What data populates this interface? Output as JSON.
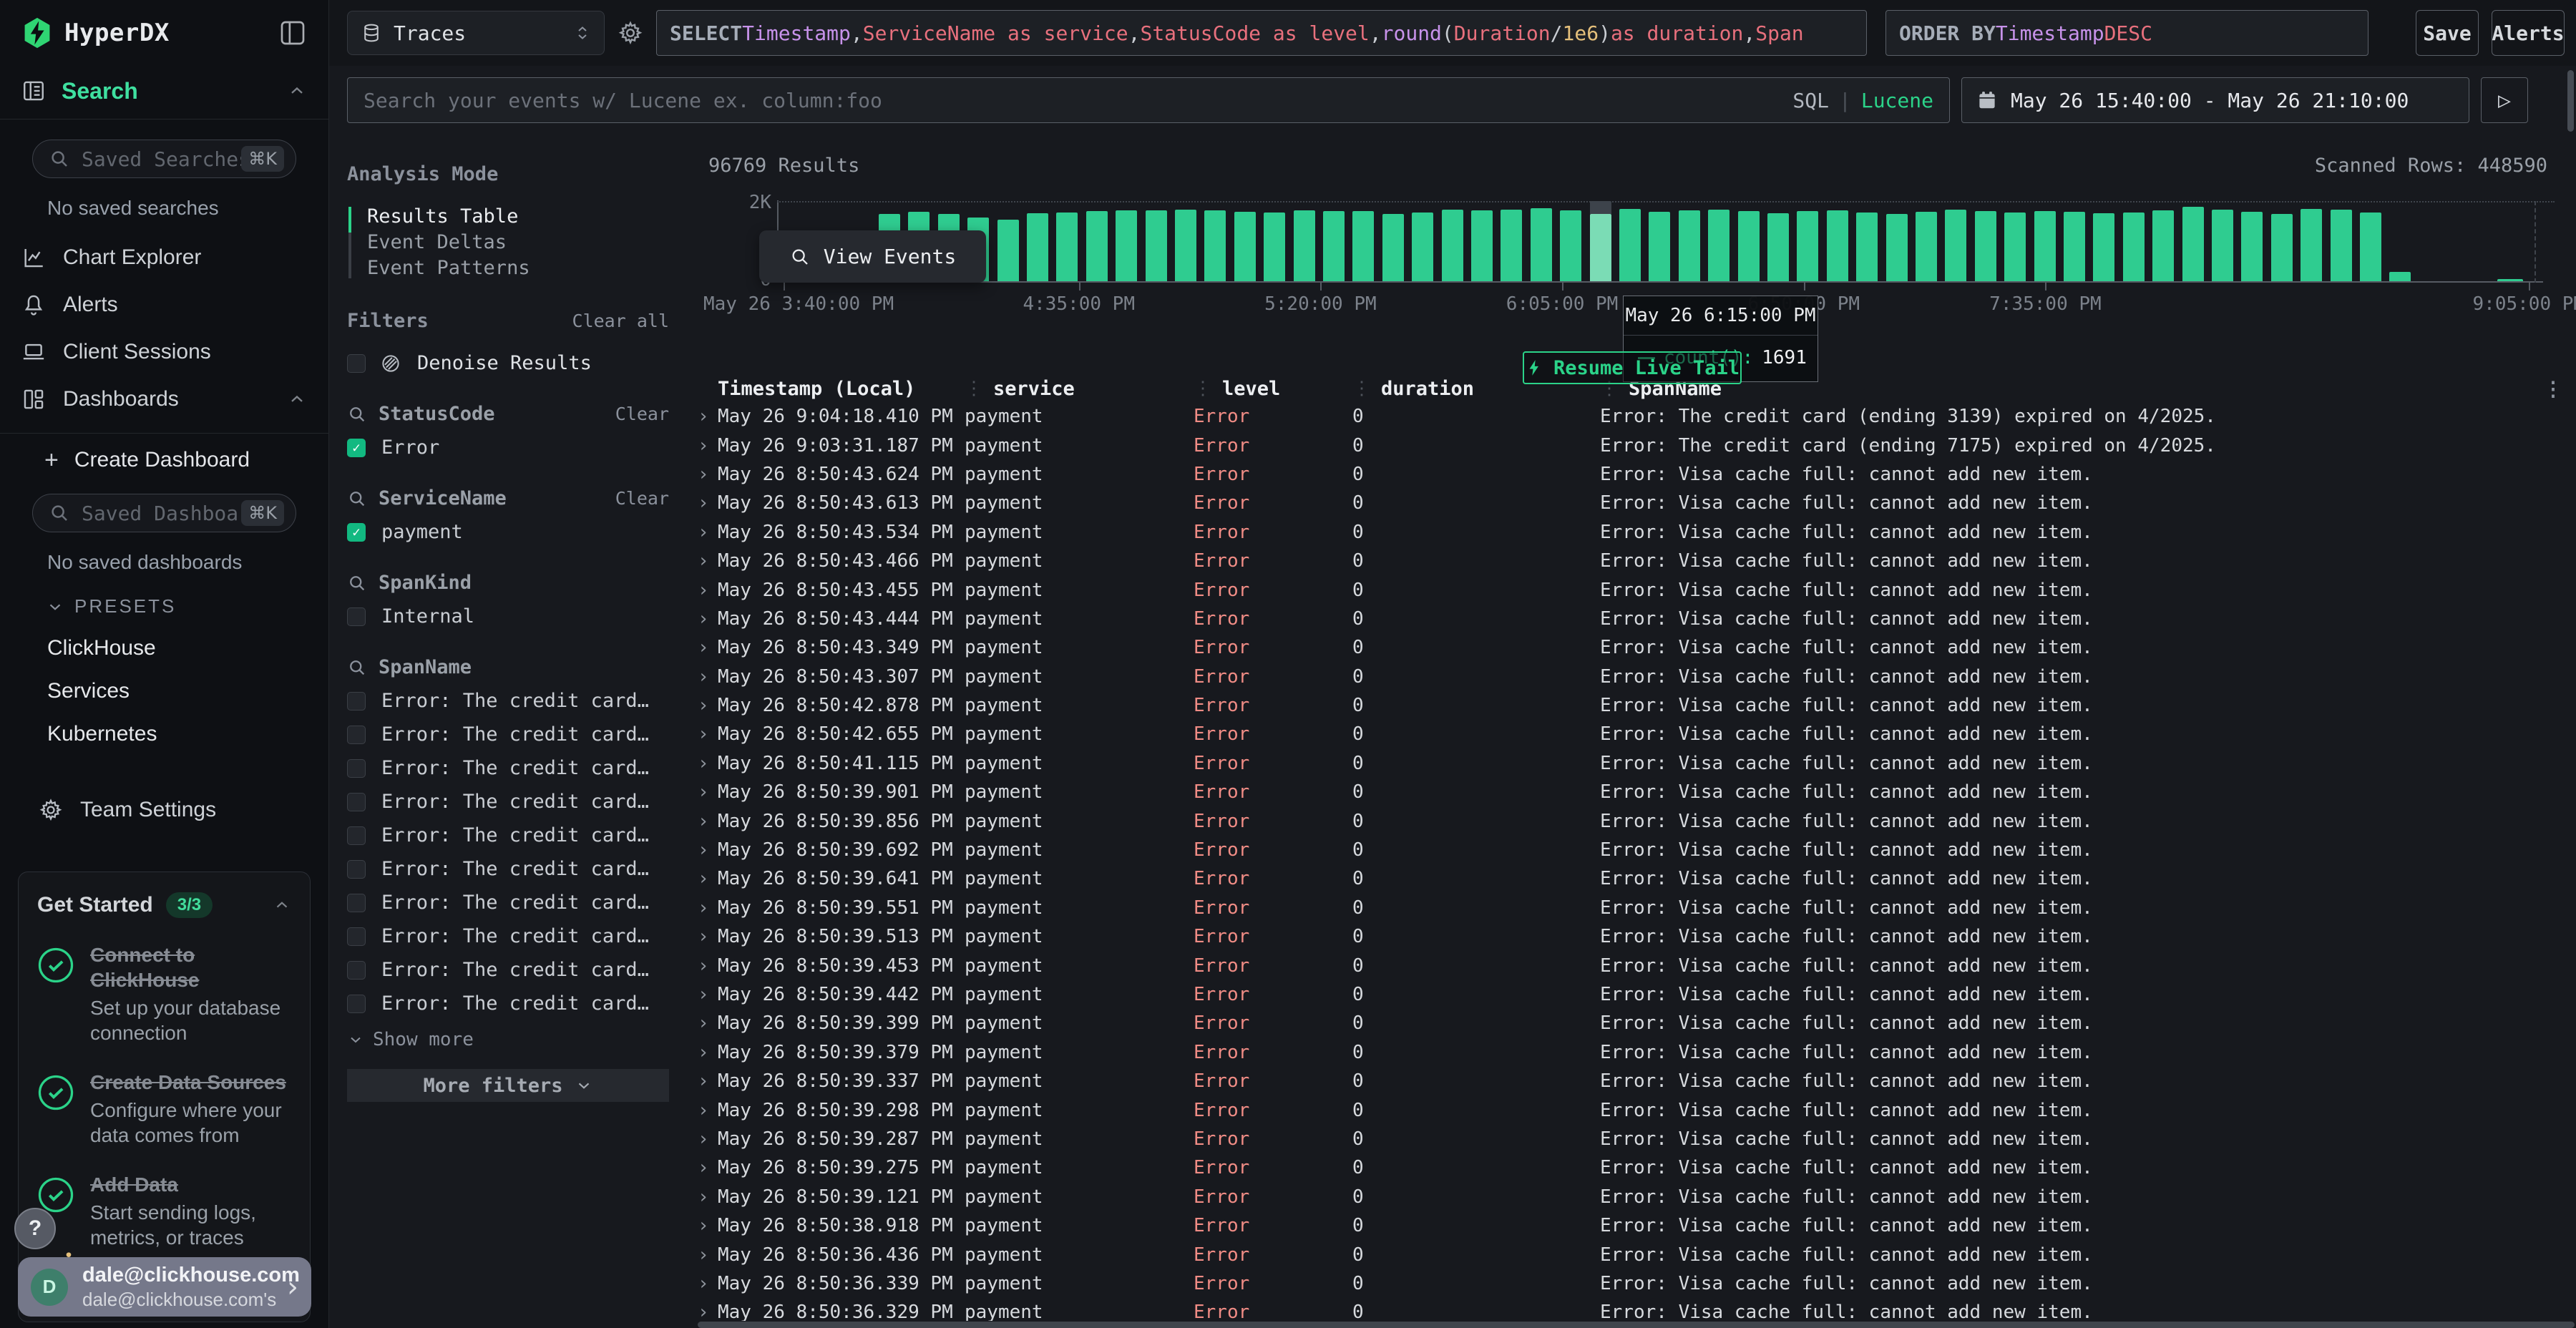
{
  "brand": {
    "name": "HyperDX"
  },
  "topbar": {
    "source_select": {
      "value": "Traces"
    },
    "sql_editor": {
      "segments": [
        [
          "SELECT ",
          "kw"
        ],
        [
          "Timestamp",
          "purple"
        ],
        [
          ", ",
          "pl"
        ],
        [
          "ServiceName as service",
          "salmon"
        ],
        [
          ", ",
          "pl"
        ],
        [
          "StatusCode as level",
          "salmon"
        ],
        [
          ", ",
          "pl"
        ],
        [
          "round",
          "purple"
        ],
        [
          "(",
          "pl"
        ],
        [
          "Duration",
          "salmon"
        ],
        [
          " / ",
          "pl"
        ],
        [
          "1e6",
          "yellow"
        ],
        [
          ")",
          "pl"
        ],
        [
          " as duration",
          "salmon"
        ],
        [
          ", ",
          "pl"
        ],
        [
          "Span",
          "salmon"
        ]
      ]
    },
    "order_by": {
      "segments": [
        [
          "ORDER BY ",
          "kw"
        ],
        [
          "Timestamp",
          "purple"
        ],
        [
          " DESC",
          "salmon"
        ]
      ]
    },
    "save": "Save",
    "alerts": "Alerts"
  },
  "search_row": {
    "placeholder": "Search your events w/ Lucene ex. column:foo",
    "mode_sql": "SQL",
    "mode_divider": "|",
    "mode_lucene": "Lucene",
    "date_range": "May 26 15:40:00 - May 26 21:10:00",
    "run_icon": "▷"
  },
  "sidebar": {
    "search_label": "Search",
    "saved_searches": {
      "placeholder": "Saved Searches",
      "shortcut": "⌘K",
      "empty": "No saved searches"
    },
    "nav": [
      {
        "label": "Chart Explorer"
      },
      {
        "label": "Alerts"
      },
      {
        "label": "Client Sessions"
      },
      {
        "label": "Dashboards"
      }
    ],
    "create_dashboard": "+ Create Dashboard",
    "saved_dashboards": {
      "placeholder": "Saved Dashboards",
      "shortcut": "⌘K",
      "empty": "No saved dashboards"
    },
    "presets": {
      "label": "PRESETS",
      "items": [
        "ClickHouse",
        "Services",
        "Kubernetes"
      ]
    },
    "team_settings": "Team Settings",
    "get_started": {
      "title": "Get Started",
      "badge": "3/3",
      "items": [
        {
          "title": "Connect to ClickHouse",
          "desc": "Set up your database connection"
        },
        {
          "title": "Create Data Sources",
          "desc": "Configure where your data comes from"
        },
        {
          "title": "Add Data",
          "desc": "Start sending logs, metrics, or traces"
        }
      ]
    },
    "help": "?",
    "user": {
      "initial": "D",
      "name": "dale@clickhouse.com",
      "subtitle": "dale@clickhouse.com's"
    }
  },
  "panel": {
    "analysis_mode": "Analysis Mode",
    "modes": [
      "Results Table",
      "Event Deltas",
      "Event Patterns"
    ],
    "active_mode": 0,
    "filters": {
      "title": "Filters",
      "clear_all": "Clear all",
      "denoise": "Denoise Results",
      "groups": [
        {
          "name": "StatusCode",
          "clear": "Clear",
          "options": [
            {
              "label": "Error",
              "checked": true
            }
          ]
        },
        {
          "name": "ServiceName",
          "clear": "Clear",
          "options": [
            {
              "label": "payment",
              "checked": true
            }
          ]
        },
        {
          "name": "SpanKind",
          "options": [
            {
              "label": "Internal",
              "checked": false
            }
          ]
        },
        {
          "name": "SpanName",
          "show_more": "Show more",
          "options": [
            {
              "label": "Error: The credit card …",
              "checked": false
            },
            {
              "label": "Error: The credit card …",
              "checked": false
            },
            {
              "label": "Error: The credit card …",
              "checked": false
            },
            {
              "label": "Error: The credit card …",
              "checked": false
            },
            {
              "label": "Error: The credit card …",
              "checked": false
            },
            {
              "label": "Error: The credit card …",
              "checked": false
            },
            {
              "label": "Error: The credit card …",
              "checked": false
            },
            {
              "label": "Error: The credit card …",
              "checked": false
            },
            {
              "label": "Error: The credit card …",
              "checked": false
            },
            {
              "label": "Error: The credit card …",
              "checked": false
            }
          ]
        }
      ],
      "more_filters": "More filters"
    }
  },
  "results": {
    "count": "96769 Results",
    "scanned": "Scanned Rows: 448590",
    "view_events": "View Events",
    "live_tail": "Resume Live Tail",
    "chart_data": {
      "type": "bar",
      "title": "96769 Results",
      "xlabel": "",
      "ylabel": "",
      "ylim": [
        0,
        2000
      ],
      "ytick_labels": [
        "0",
        "2K"
      ],
      "grid": "dotted-top",
      "legend": "none",
      "xtick_labels": [
        "May 26 3:40:00 PM",
        "4:35:00 PM",
        "5:20:00 PM",
        "6:05:00 PM",
        "6:50:00 PM",
        "7:35:00 PM",
        "9:05:00 PM"
      ],
      "xtick_minutes": [
        0,
        55,
        100,
        145,
        190,
        235,
        325
      ],
      "values": [
        1700,
        1755,
        1700,
        1602,
        1558,
        1720,
        1735,
        1772,
        1790,
        1775,
        1801,
        1786,
        1755,
        1731,
        1785,
        1762,
        1772,
        1701,
        1723,
        1803,
        1781,
        1799,
        1843,
        1782,
        1691,
        1821,
        1752,
        1788,
        1806,
        1757,
        1704,
        1762,
        1781,
        1723,
        1702,
        1753,
        1802,
        1772,
        1733,
        1762,
        1743,
        1704,
        1724,
        1783,
        1873,
        1804,
        1753,
        1692,
        1823,
        1801,
        1723
      ],
      "hover_index": 24,
      "leading_value": 22,
      "trailing_values": [
        232,
        18
      ],
      "bar_color": "#2fcc90",
      "hover_bar_color": "#7bdcb5",
      "hover_cap_color": "#3d434b",
      "tooltip": {
        "title": "May 26 6:15:00 PM",
        "series": "count():",
        "value": "1691"
      }
    },
    "table": {
      "headers": [
        "Timestamp (Local)",
        "service",
        "level",
        "duration",
        "SpanName"
      ],
      "defaults": {
        "service": "payment",
        "level": "Error",
        "duration": "0"
      },
      "default_span": "Error: Visa cache full: cannot add new item.",
      "rows": [
        {
          "ts": "May 26 9:04:18.410 PM",
          "span": "Error: The credit card (ending 3139) expired on 4/2025."
        },
        {
          "ts": "May 26 9:03:31.187 PM",
          "span": "Error: The credit card (ending 7175) expired on 4/2025."
        },
        {
          "ts": "May 26 8:50:43.624 PM"
        },
        {
          "ts": "May 26 8:50:43.613 PM"
        },
        {
          "ts": "May 26 8:50:43.534 PM"
        },
        {
          "ts": "May 26 8:50:43.466 PM"
        },
        {
          "ts": "May 26 8:50:43.455 PM"
        },
        {
          "ts": "May 26 8:50:43.444 PM"
        },
        {
          "ts": "May 26 8:50:43.349 PM"
        },
        {
          "ts": "May 26 8:50:43.307 PM"
        },
        {
          "ts": "May 26 8:50:42.878 PM"
        },
        {
          "ts": "May 26 8:50:42.655 PM"
        },
        {
          "ts": "May 26 8:50:41.115 PM"
        },
        {
          "ts": "May 26 8:50:39.901 PM"
        },
        {
          "ts": "May 26 8:50:39.856 PM"
        },
        {
          "ts": "May 26 8:50:39.692 PM"
        },
        {
          "ts": "May 26 8:50:39.641 PM"
        },
        {
          "ts": "May 26 8:50:39.551 PM"
        },
        {
          "ts": "May 26 8:50:39.513 PM"
        },
        {
          "ts": "May 26 8:50:39.453 PM"
        },
        {
          "ts": "May 26 8:50:39.442 PM"
        },
        {
          "ts": "May 26 8:50:39.399 PM"
        },
        {
          "ts": "May 26 8:50:39.379 PM"
        },
        {
          "ts": "May 26 8:50:39.337 PM"
        },
        {
          "ts": "May 26 8:50:39.298 PM"
        },
        {
          "ts": "May 26 8:50:39.287 PM"
        },
        {
          "ts": "May 26 8:50:39.275 PM"
        },
        {
          "ts": "May 26 8:50:39.121 PM"
        },
        {
          "ts": "May 26 8:50:38.918 PM"
        },
        {
          "ts": "May 26 8:50:36.436 PM"
        },
        {
          "ts": "May 26 8:50:36.339 PM"
        },
        {
          "ts": "May 26 8:50:36.329 PM"
        }
      ]
    }
  },
  "colors": {
    "accent": "#2bd389",
    "bar": "#2fcc90",
    "error": "#f08c85",
    "purple": "#c792ea",
    "salmon": "#e8707d",
    "yellow": "#e5c07b"
  }
}
